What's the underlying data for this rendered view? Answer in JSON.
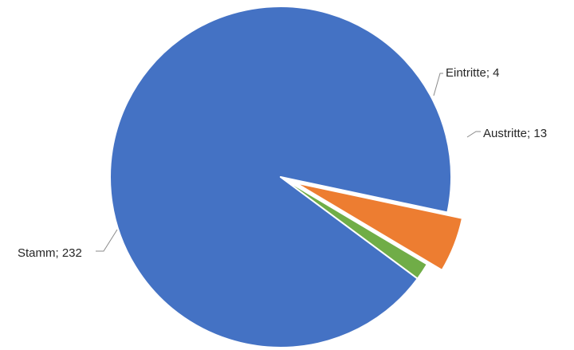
{
  "chart_data": {
    "type": "pie",
    "start_angle_deg": -12,
    "direction": "counterclockwise",
    "exploded": "Austritte",
    "slices": [
      {
        "name": "Stamm",
        "value": 232,
        "label": "Stamm; 232",
        "color": "#4472C4"
      },
      {
        "name": "Eintritte",
        "value": 4,
        "label": "Eintritte; 4",
        "color": "#70AD47"
      },
      {
        "name": "Austritte",
        "value": 13,
        "label": "Austritte; 13",
        "color": "#ED7D31"
      }
    ]
  }
}
